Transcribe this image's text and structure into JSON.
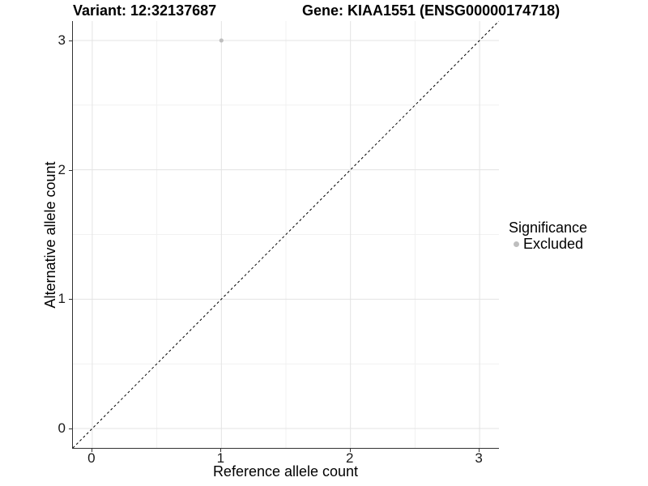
{
  "titles": {
    "variant": "Variant: 12:32137687",
    "gene": "Gene: KIAA1551 (ENSG00000174718)"
  },
  "chart_data": {
    "type": "scatter",
    "xlabel": "Reference allele count",
    "ylabel": "Alternative allele count",
    "xlim": [
      -0.15,
      3.15
    ],
    "ylim": [
      -0.15,
      3.15
    ],
    "xticks": [
      0,
      1,
      2,
      3
    ],
    "yticks": [
      0,
      1,
      2,
      3
    ],
    "minor_xticks": [
      0.5,
      1.5,
      2.5
    ],
    "minor_yticks": [
      0.5,
      1.5,
      2.5
    ],
    "grid": true,
    "points": [
      {
        "x": 1,
        "y": 3,
        "series": "Excluded"
      }
    ],
    "reference_line": {
      "type": "identity",
      "style": "dashed",
      "from": [
        -0.15,
        -0.15
      ],
      "to": [
        3.15,
        3.15
      ]
    },
    "legend": {
      "title": "Significance",
      "position": "right",
      "items": [
        {
          "label": "Excluded",
          "color": "#bebebe"
        }
      ]
    },
    "colors": {
      "point": "#bebebe",
      "grid_major": "#e3e3e3",
      "grid_minor": "#f1f1f1",
      "axis_line": "#333333",
      "dashed_line": "#000000"
    }
  }
}
